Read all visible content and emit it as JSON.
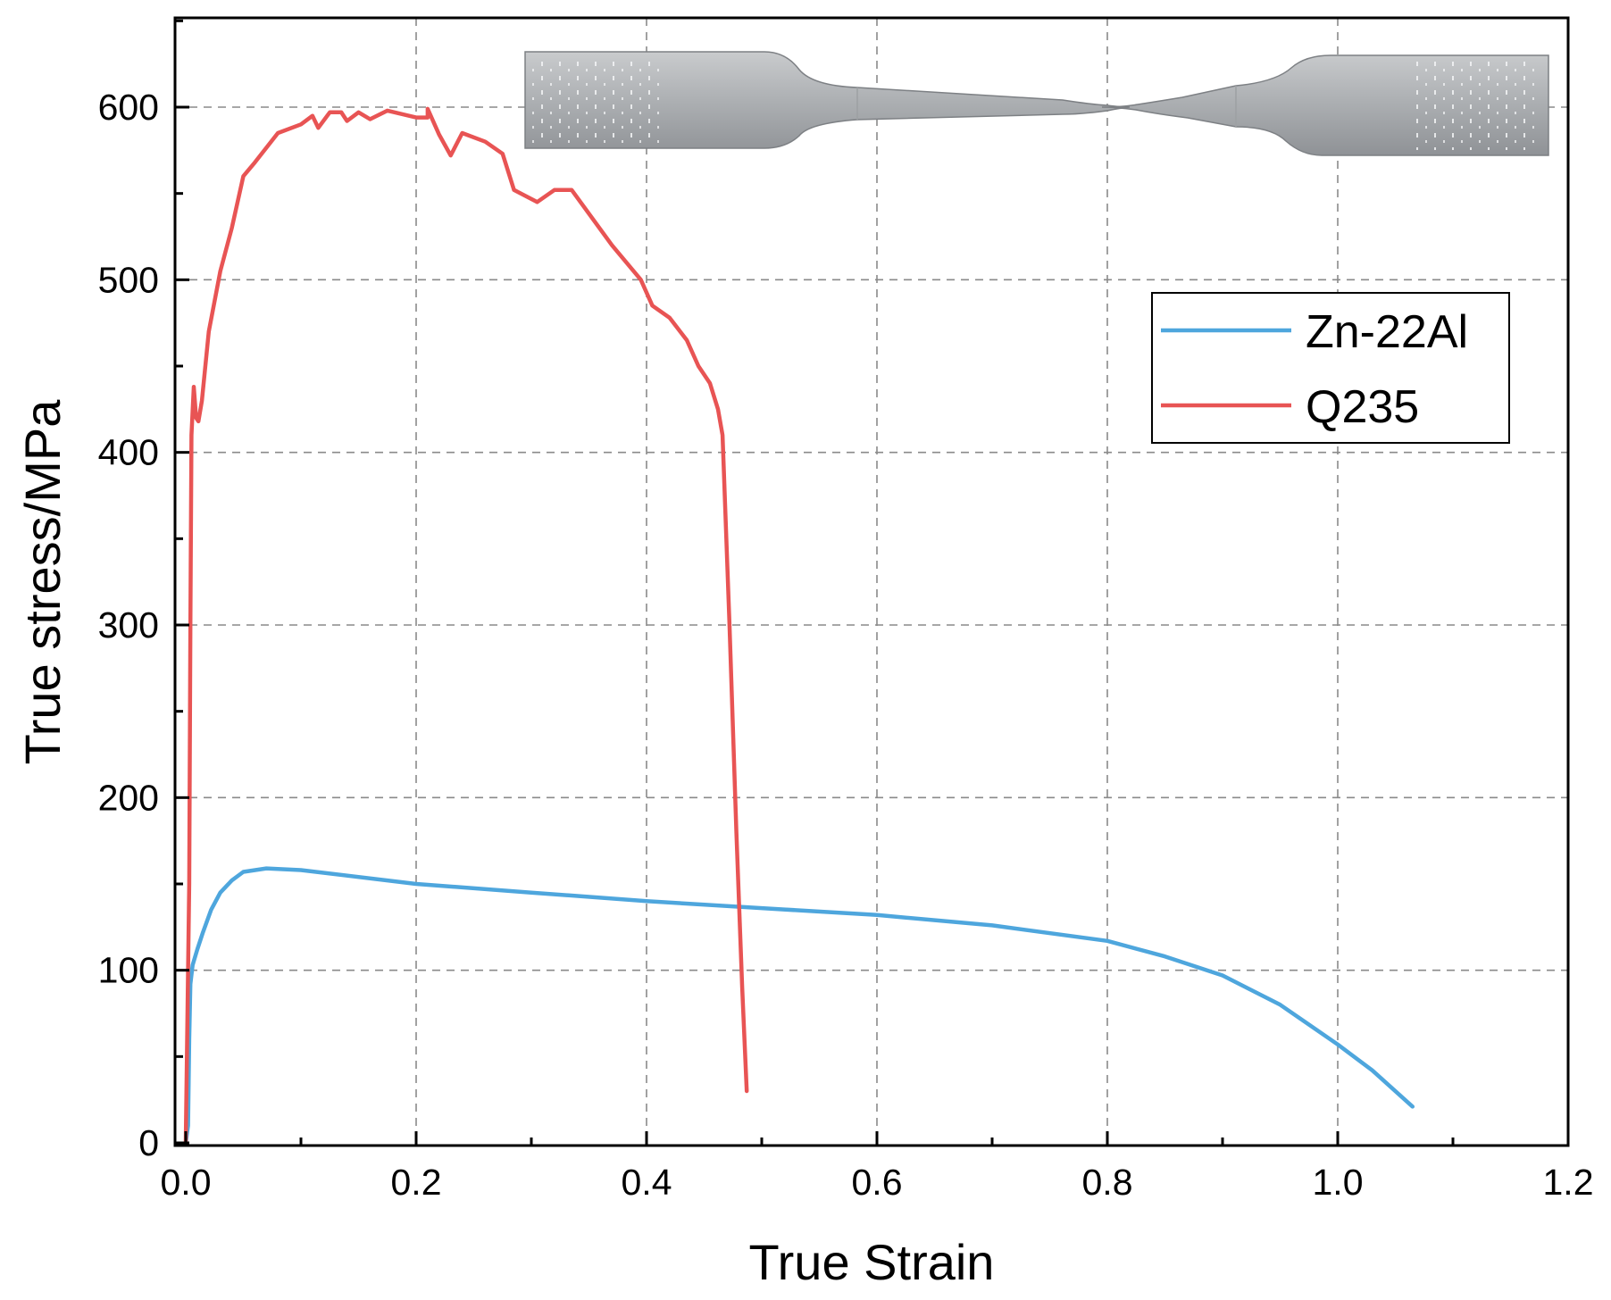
{
  "chart_data": {
    "type": "line",
    "xlabel": "True Strain",
    "ylabel": "True stress/MPa",
    "xlim": [
      0.0,
      1.2
    ],
    "ylim": [
      0,
      650
    ],
    "grid": true,
    "legend_position": "top-right",
    "x_ticks": [
      "0.0",
      "0.2",
      "0.4",
      "0.6",
      "0.8",
      "1.0",
      "1.2"
    ],
    "y_ticks": [
      "0",
      "100",
      "200",
      "300",
      "400",
      "500",
      "600"
    ],
    "inset": "photo of a fractured tensile specimen",
    "series": [
      {
        "name": "Zn-22Al",
        "color": "#4ea6dd",
        "points": [
          [
            0.0,
            0
          ],
          [
            0.002,
            10
          ],
          [
            0.003,
            60
          ],
          [
            0.004,
            92
          ],
          [
            0.006,
            103
          ],
          [
            0.01,
            112
          ],
          [
            0.015,
            122
          ],
          [
            0.022,
            135
          ],
          [
            0.03,
            145
          ],
          [
            0.04,
            152
          ],
          [
            0.05,
            157
          ],
          [
            0.07,
            159
          ],
          [
            0.1,
            158
          ],
          [
            0.2,
            150
          ],
          [
            0.3,
            145
          ],
          [
            0.4,
            140
          ],
          [
            0.5,
            136
          ],
          [
            0.6,
            132
          ],
          [
            0.7,
            126
          ],
          [
            0.8,
            117
          ],
          [
            0.85,
            108
          ],
          [
            0.9,
            97
          ],
          [
            0.95,
            80
          ],
          [
            1.0,
            57
          ],
          [
            1.03,
            42
          ],
          [
            1.065,
            21
          ]
        ]
      },
      {
        "name": "Q235",
        "color": "#e85454",
        "points": [
          [
            0.0,
            0
          ],
          [
            0.003,
            150
          ],
          [
            0.004,
            300
          ],
          [
            0.005,
            410
          ],
          [
            0.007,
            438
          ],
          [
            0.009,
            420
          ],
          [
            0.011,
            418
          ],
          [
            0.014,
            430
          ],
          [
            0.02,
            470
          ],
          [
            0.03,
            505
          ],
          [
            0.04,
            530
          ],
          [
            0.05,
            560
          ],
          [
            0.06,
            568
          ],
          [
            0.08,
            585
          ],
          [
            0.1,
            590
          ],
          [
            0.11,
            595
          ],
          [
            0.115,
            588
          ],
          [
            0.125,
            597
          ],
          [
            0.135,
            597
          ],
          [
            0.14,
            592
          ],
          [
            0.15,
            597
          ],
          [
            0.16,
            593
          ],
          [
            0.175,
            598
          ],
          [
            0.2,
            594
          ],
          [
            0.21,
            594
          ],
          [
            0.21,
            599
          ],
          [
            0.22,
            584
          ],
          [
            0.23,
            572
          ],
          [
            0.24,
            585
          ],
          [
            0.26,
            580
          ],
          [
            0.275,
            573
          ],
          [
            0.285,
            552
          ],
          [
            0.305,
            545
          ],
          [
            0.32,
            552
          ],
          [
            0.335,
            552
          ],
          [
            0.37,
            520
          ],
          [
            0.395,
            500
          ],
          [
            0.405,
            485
          ],
          [
            0.42,
            478
          ],
          [
            0.435,
            465
          ],
          [
            0.445,
            450
          ],
          [
            0.455,
            440
          ],
          [
            0.462,
            425
          ],
          [
            0.466,
            410
          ],
          [
            0.472,
            300
          ],
          [
            0.478,
            180
          ],
          [
            0.483,
            90
          ],
          [
            0.487,
            30
          ]
        ]
      }
    ]
  }
}
